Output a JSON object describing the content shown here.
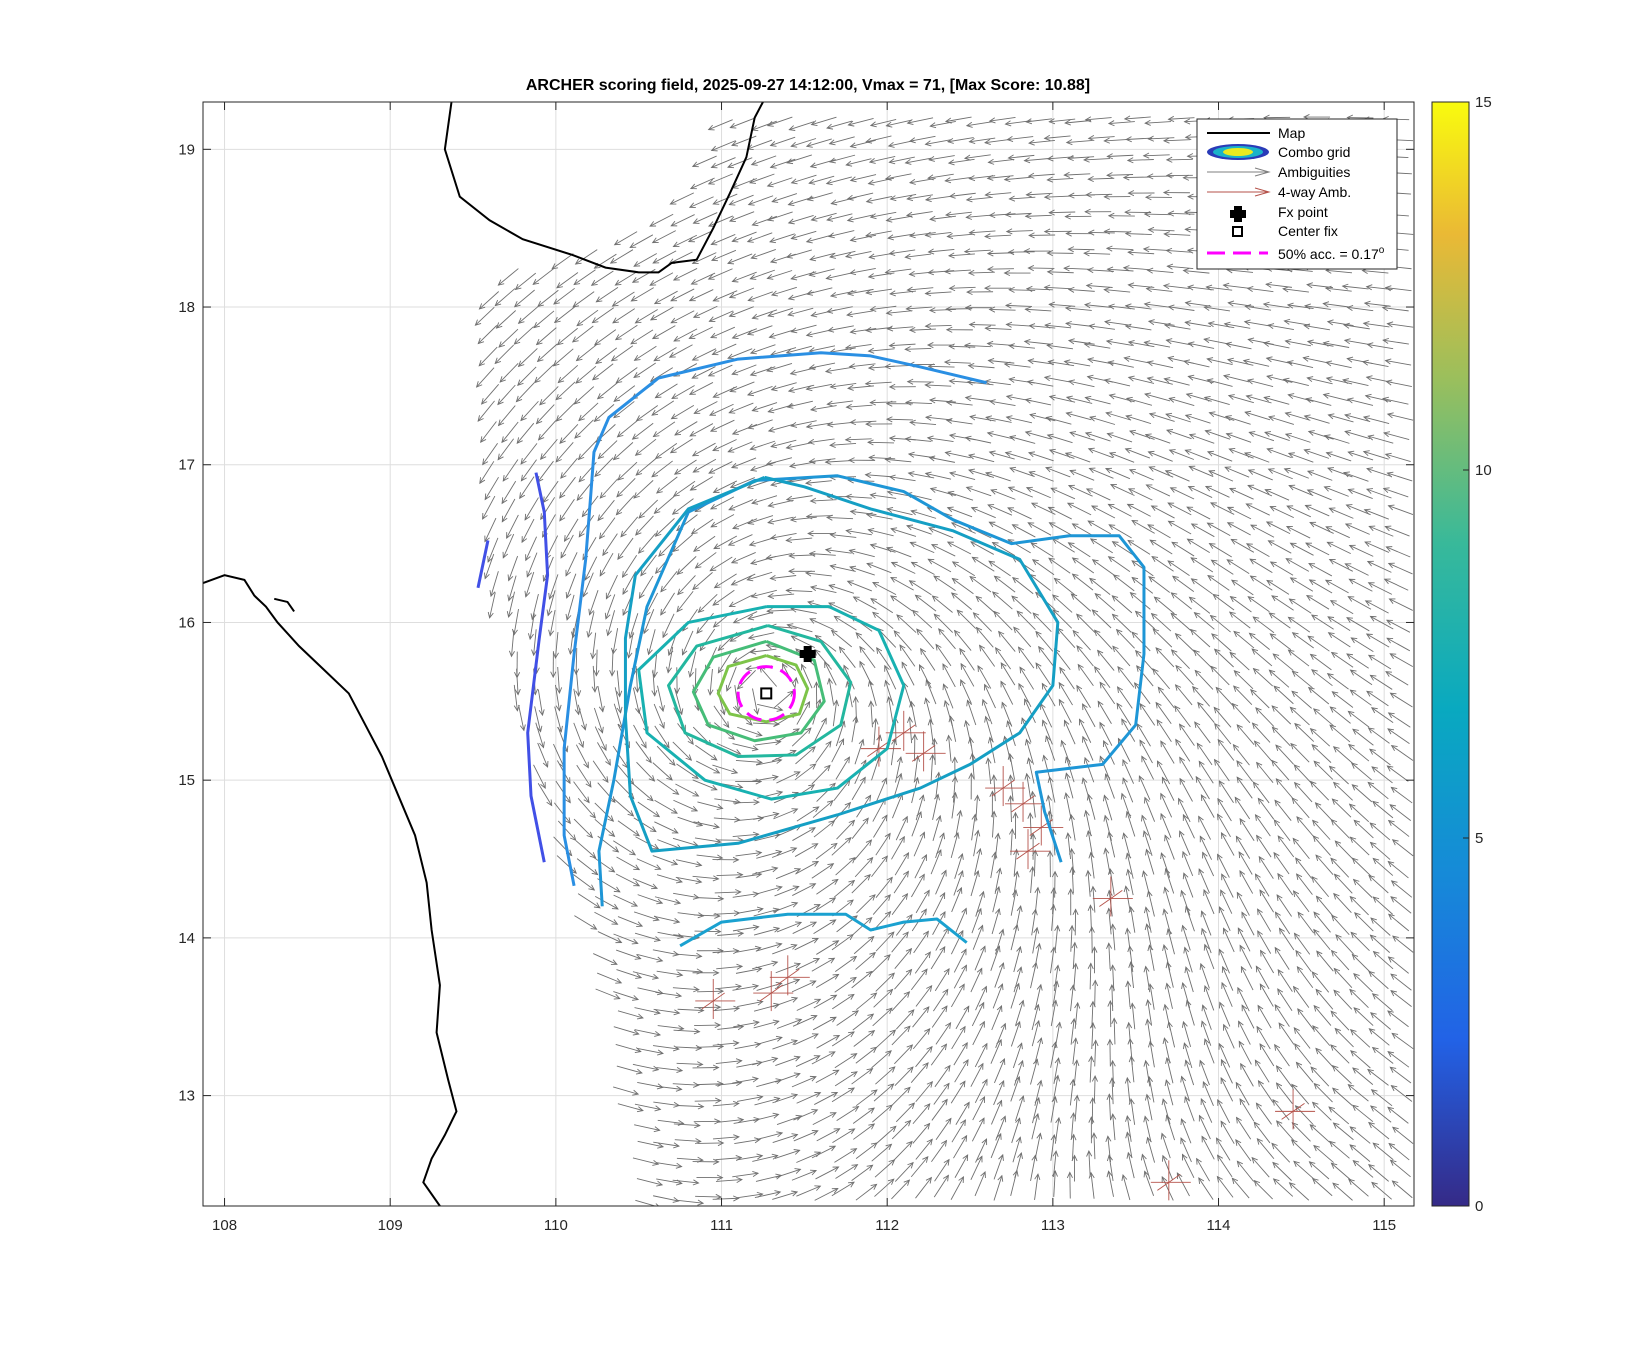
{
  "chart_data": {
    "type": "scatter",
    "title": "ARCHER scoring field, 2025-09-27 14:12:00, Vmax = 71, [Max Score: 10.88]",
    "xlabel": "",
    "ylabel": "",
    "xlim": [
      107.87,
      115.18
    ],
    "ylim": [
      12.3,
      19.3
    ],
    "x_ticks": [
      "108",
      "109",
      "110",
      "111",
      "112",
      "113",
      "114",
      "115"
    ],
    "y_ticks": [
      "13",
      "14",
      "15",
      "16",
      "17",
      "18",
      "19"
    ],
    "grid": true,
    "colorbar": {
      "ticks": [
        "0",
        "5",
        "10",
        "15"
      ],
      "range": [
        0,
        15
      ],
      "colormap": "parula"
    },
    "legend": {
      "position": "top-right",
      "entries": [
        {
          "label": "Map",
          "color": "#000000"
        },
        {
          "label": "Combo grid",
          "color": "#2a3bb8"
        },
        {
          "label": "Ambiguities",
          "color": "#7f7f7f"
        },
        {
          "label": "4-way Amb.",
          "color": "#b5524a"
        },
        {
          "label": "Fx point",
          "color": "#000000"
        },
        {
          "label": "Center fix",
          "color": "#000000"
        },
        {
          "label": "50% acc. = 0.17",
          "suffix": "o",
          "color": "#ff00ff"
        }
      ]
    },
    "fx_point": {
      "lon": 111.52,
      "lat": 15.8
    },
    "center_fix": {
      "lon": 111.27,
      "lat": 15.55
    },
    "acc_radius_deg": 0.17,
    "storm_center": {
      "lon": 111.27,
      "lat": 15.57
    },
    "contours": [
      {
        "level": 2.5,
        "color": "#4150e6",
        "points": [
          [
            109.53,
            16.22
          ],
          [
            109.59,
            16.52
          ]
        ]
      },
      {
        "level": 2.5,
        "color": "#4150e6",
        "points": [
          [
            109.88,
            16.95
          ],
          [
            109.93,
            16.7
          ],
          [
            109.95,
            16.3
          ],
          [
            109.9,
            15.9
          ],
          [
            109.83,
            15.3
          ],
          [
            109.85,
            14.9
          ],
          [
            109.93,
            14.48
          ]
        ]
      },
      {
        "level": 4.0,
        "color": "#2a8fe3",
        "points": [
          [
            110.11,
            14.33
          ],
          [
            110.05,
            14.65
          ],
          [
            110.05,
            15.2
          ],
          [
            110.11,
            15.8
          ],
          [
            110.18,
            16.4
          ],
          [
            110.21,
            16.8
          ],
          [
            110.23,
            17.08
          ],
          [
            110.32,
            17.3
          ],
          [
            110.62,
            17.55
          ],
          [
            111.1,
            17.67
          ],
          [
            111.6,
            17.71
          ],
          [
            111.9,
            17.69
          ],
          [
            112.2,
            17.62
          ],
          [
            112.6,
            17.52
          ]
        ]
      },
      {
        "level": 5.0,
        "color": "#1e96d6",
        "points": [
          [
            110.28,
            14.2
          ],
          [
            110.26,
            14.55
          ],
          [
            110.35,
            15.0
          ],
          [
            110.45,
            15.6
          ],
          [
            110.55,
            16.1
          ],
          [
            110.8,
            16.7
          ],
          [
            111.2,
            16.9
          ],
          [
            111.7,
            16.93
          ],
          [
            112.1,
            16.83
          ],
          [
            112.4,
            16.65
          ],
          [
            112.75,
            16.5
          ],
          [
            113.1,
            16.55
          ],
          [
            113.4,
            16.55
          ],
          [
            113.55,
            16.35
          ],
          [
            113.55,
            15.8
          ],
          [
            113.5,
            15.35
          ],
          [
            113.3,
            15.1
          ],
          [
            112.9,
            15.05
          ],
          [
            112.95,
            14.8
          ],
          [
            113.05,
            14.48
          ]
        ]
      },
      {
        "level": 5.5,
        "color": "#1aa1d0",
        "points": [
          [
            110.75,
            13.95
          ],
          [
            111.0,
            14.1
          ],
          [
            111.4,
            14.15
          ],
          [
            111.75,
            14.15
          ],
          [
            111.9,
            14.05
          ],
          [
            112.1,
            14.1
          ],
          [
            112.3,
            14.12
          ],
          [
            112.48,
            13.97
          ]
        ]
      },
      {
        "level": 6.0,
        "color": "#159fc4",
        "points": [
          [
            111.26,
            16.92
          ],
          [
            110.8,
            16.72
          ],
          [
            110.48,
            16.3
          ],
          [
            110.42,
            15.9
          ],
          [
            110.42,
            15.4
          ],
          [
            110.45,
            14.9
          ],
          [
            110.58,
            14.55
          ],
          [
            111.1,
            14.6
          ],
          [
            111.7,
            14.78
          ],
          [
            112.2,
            14.95
          ],
          [
            112.5,
            15.1
          ],
          [
            112.8,
            15.3
          ],
          [
            113.0,
            15.6
          ],
          [
            113.03,
            16.0
          ],
          [
            112.8,
            16.4
          ],
          [
            112.4,
            16.58
          ],
          [
            111.9,
            16.72
          ],
          [
            111.5,
            16.86
          ],
          [
            111.26,
            16.92
          ]
        ]
      },
      {
        "level": 7.0,
        "color": "#18b1b1",
        "points": [
          [
            111.27,
            16.1
          ],
          [
            110.8,
            16.0
          ],
          [
            110.5,
            15.7
          ],
          [
            110.55,
            15.3
          ],
          [
            110.9,
            15.0
          ],
          [
            111.3,
            14.88
          ],
          [
            111.7,
            14.95
          ],
          [
            112.0,
            15.2
          ],
          [
            112.1,
            15.6
          ],
          [
            111.95,
            15.95
          ],
          [
            111.65,
            16.1
          ],
          [
            111.27,
            16.1
          ]
        ]
      },
      {
        "level": 8.0,
        "color": "#23b79f",
        "points": [
          [
            111.28,
            15.98
          ],
          [
            110.85,
            15.85
          ],
          [
            110.68,
            15.6
          ],
          [
            110.78,
            15.3
          ],
          [
            111.1,
            15.15
          ],
          [
            111.45,
            15.16
          ],
          [
            111.72,
            15.35
          ],
          [
            111.78,
            15.62
          ],
          [
            111.6,
            15.88
          ],
          [
            111.28,
            15.98
          ]
        ]
      },
      {
        "level": 9.0,
        "color": "#46bd78",
        "points": [
          [
            111.27,
            15.88
          ],
          [
            110.95,
            15.78
          ],
          [
            110.83,
            15.56
          ],
          [
            110.92,
            15.35
          ],
          [
            111.2,
            15.25
          ],
          [
            111.48,
            15.3
          ],
          [
            111.62,
            15.5
          ],
          [
            111.56,
            15.76
          ],
          [
            111.27,
            15.88
          ]
        ]
      },
      {
        "level": 10.0,
        "color": "#7dc449",
        "points": [
          [
            111.27,
            15.79
          ],
          [
            111.04,
            15.72
          ],
          [
            110.98,
            15.55
          ],
          [
            111.05,
            15.42
          ],
          [
            111.27,
            15.37
          ],
          [
            111.47,
            15.42
          ],
          [
            111.52,
            15.58
          ],
          [
            111.45,
            15.73
          ],
          [
            111.27,
            15.79
          ]
        ]
      }
    ]
  }
}
